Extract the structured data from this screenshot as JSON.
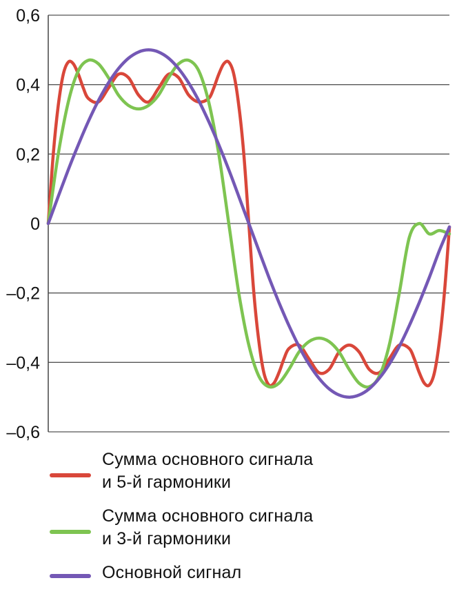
{
  "chart_data": {
    "type": "line",
    "title": "",
    "xlabel": "",
    "ylabel": "",
    "ylim": [
      -0.6,
      0.6
    ],
    "y_ticks": [
      0.6,
      0.4,
      0.2,
      0,
      -0.2,
      -0.4,
      -0.6
    ],
    "y_tick_labels": [
      "0,6",
      "0,4",
      "0,2",
      "0",
      "–0,2",
      "–0,4",
      "–0,6"
    ],
    "x_range": [
      0,
      1
    ],
    "x_ticks_shown": false,
    "grid": "horizontal",
    "legend_position": "bottom",
    "series": [
      {
        "name_lines": [
          "Сумма основного сигнала",
          "и 5-й гармоники"
        ],
        "color": "#d9473a",
        "x": [
          0,
          0.0125,
          0.025,
          0.0375,
          0.05,
          0.0625,
          0.075,
          0.0875,
          0.1,
          0.125,
          0.15,
          0.175,
          0.2,
          0.225,
          0.25,
          0.275,
          0.3,
          0.325,
          0.35,
          0.375,
          0.4,
          0.4125,
          0.425,
          0.4375,
          0.45,
          0.4625,
          0.475,
          0.4875,
          0.5,
          0.5125,
          0.525,
          0.5375,
          0.55,
          0.5625,
          0.575,
          0.5875,
          0.6,
          0.625,
          0.65,
          0.675,
          0.7,
          0.725,
          0.75,
          0.775,
          0.8,
          0.825,
          0.85,
          0.875,
          0.9,
          0.9125,
          0.925,
          0.9375,
          0.95,
          0.9625,
          0.975,
          0.9875,
          1
        ],
        "values": [
          0,
          0.2,
          0.34,
          0.43,
          0.465,
          0.46,
          0.43,
          0.39,
          0.36,
          0.35,
          0.39,
          0.43,
          0.42,
          0.37,
          0.35,
          0.39,
          0.43,
          0.42,
          0.37,
          0.35,
          0.36,
          0.39,
          0.43,
          0.46,
          0.465,
          0.43,
          0.34,
          0.2,
          0,
          -0.2,
          -0.34,
          -0.43,
          -0.465,
          -0.46,
          -0.43,
          -0.39,
          -0.36,
          -0.35,
          -0.39,
          -0.43,
          -0.42,
          -0.37,
          -0.35,
          -0.37,
          -0.42,
          -0.43,
          -0.39,
          -0.35,
          -0.36,
          -0.39,
          -0.43,
          -0.46,
          -0.465,
          -0.43,
          -0.34,
          -0.2,
          -0.01
        ]
      },
      {
        "name_lines": [
          "Сумма основного сигнала",
          "и 3-й гармоники"
        ],
        "color": "#7ec451",
        "x": [
          0,
          0.025,
          0.05,
          0.075,
          0.1,
          0.125,
          0.15,
          0.175,
          0.2,
          0.225,
          0.25,
          0.275,
          0.3,
          0.325,
          0.35,
          0.375,
          0.4,
          0.425,
          0.45,
          0.475,
          0.5,
          0.525,
          0.55,
          0.575,
          0.6,
          0.625,
          0.65,
          0.675,
          0.7,
          0.725,
          0.75,
          0.775,
          0.8,
          0.825,
          0.85,
          0.875,
          0.9,
          0.925,
          0.95,
          0.975,
          1
        ],
        "values": [
          0,
          0.2,
          0.35,
          0.44,
          0.47,
          0.46,
          0.42,
          0.37,
          0.34,
          0.33,
          0.34,
          0.37,
          0.42,
          0.46,
          0.47,
          0.44,
          0.35,
          0.2,
          0,
          -0.2,
          -0.35,
          -0.44,
          -0.47,
          -0.46,
          -0.42,
          -0.37,
          -0.34,
          -0.33,
          -0.34,
          -0.37,
          -0.42,
          -0.46,
          -0.47,
          -0.44,
          -0.35,
          -0.2,
          -0.04,
          0,
          -0.03,
          -0.02,
          -0.03
        ]
      },
      {
        "name_lines": [
          "Основной сигнал"
        ],
        "color": "#7458b5",
        "x": [
          0,
          0.025,
          0.05,
          0.075,
          0.1,
          0.125,
          0.15,
          0.175,
          0.2,
          0.225,
          0.25,
          0.275,
          0.3,
          0.325,
          0.35,
          0.375,
          0.4,
          0.425,
          0.45,
          0.475,
          0.5,
          0.525,
          0.55,
          0.575,
          0.6,
          0.625,
          0.65,
          0.675,
          0.7,
          0.725,
          0.75,
          0.775,
          0.8,
          0.825,
          0.85,
          0.875,
          0.9,
          0.925,
          0.95,
          0.975,
          1
        ],
        "values": [
          0,
          0.078,
          0.155,
          0.227,
          0.294,
          0.354,
          0.405,
          0.446,
          0.476,
          0.494,
          0.5,
          0.494,
          0.476,
          0.446,
          0.405,
          0.354,
          0.294,
          0.227,
          0.155,
          0.078,
          0,
          -0.078,
          -0.155,
          -0.227,
          -0.294,
          -0.354,
          -0.405,
          -0.446,
          -0.476,
          -0.494,
          -0.5,
          -0.494,
          -0.476,
          -0.446,
          -0.405,
          -0.354,
          -0.294,
          -0.227,
          -0.155,
          -0.078,
          -0.01
        ]
      }
    ]
  }
}
